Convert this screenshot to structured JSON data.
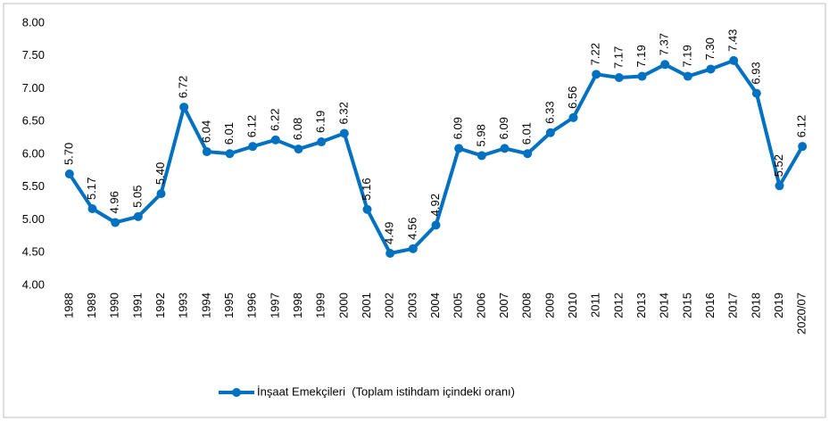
{
  "chart_data": {
    "type": "line",
    "categories": [
      "1988",
      "1989",
      "1990",
      "1991",
      "1992",
      "1993",
      "1994",
      "1995",
      "1996",
      "1997",
      "1998",
      "1999",
      "2000",
      "2001",
      "2002",
      "2003",
      "2004",
      "2005",
      "2006",
      "2007",
      "2008",
      "2009",
      "2010",
      "2011",
      "2012",
      "2013",
      "2014",
      "2015",
      "2016",
      "2017",
      "2018",
      "2019",
      "2020/07"
    ],
    "series": [
      {
        "name": "İnşaat Emekçileri  (Toplam istihdam içindeki oranı)",
        "color": "#0070c0",
        "values": [
          5.7,
          5.17,
          4.96,
          5.05,
          5.4,
          6.72,
          6.04,
          6.01,
          6.12,
          6.22,
          6.08,
          6.19,
          6.32,
          5.16,
          4.49,
          4.56,
          4.92,
          6.09,
          5.98,
          6.09,
          6.01,
          6.33,
          6.56,
          7.22,
          7.17,
          7.19,
          7.37,
          7.19,
          7.3,
          7.43,
          6.93,
          5.52,
          6.12
        ],
        "value_labels": [
          "5.70",
          "5.17",
          "4.96",
          "5.05",
          "5.40",
          "6.72",
          "6.04",
          "6.01",
          "6.12",
          "6.22",
          "6.08",
          "6.19",
          "6.32",
          "5.16",
          "4.49",
          "4.56",
          "4.92",
          "6.09",
          "5.98",
          "6.09",
          "6.01",
          "6.33",
          "6.56",
          "7.22",
          "7.17",
          "7.19",
          "7.37",
          "7.19",
          "7.30",
          "7.43",
          "6.93",
          "5.52",
          "6.12"
        ]
      }
    ],
    "ylim": [
      4,
      8
    ],
    "yticks": [
      {
        "value": 4,
        "label": "4.00"
      },
      {
        "value": 4.5,
        "label": "4.50"
      },
      {
        "value": 5,
        "label": "5.00"
      },
      {
        "value": 5.5,
        "label": "5.50"
      },
      {
        "value": 6,
        "label": "6.00"
      },
      {
        "value": 6.5,
        "label": "6.50"
      },
      {
        "value": 7,
        "label": "7.00"
      },
      {
        "value": 7.5,
        "label": "7.50"
      },
      {
        "value": 8,
        "label": "8.00"
      }
    ],
    "grid": false
  }
}
